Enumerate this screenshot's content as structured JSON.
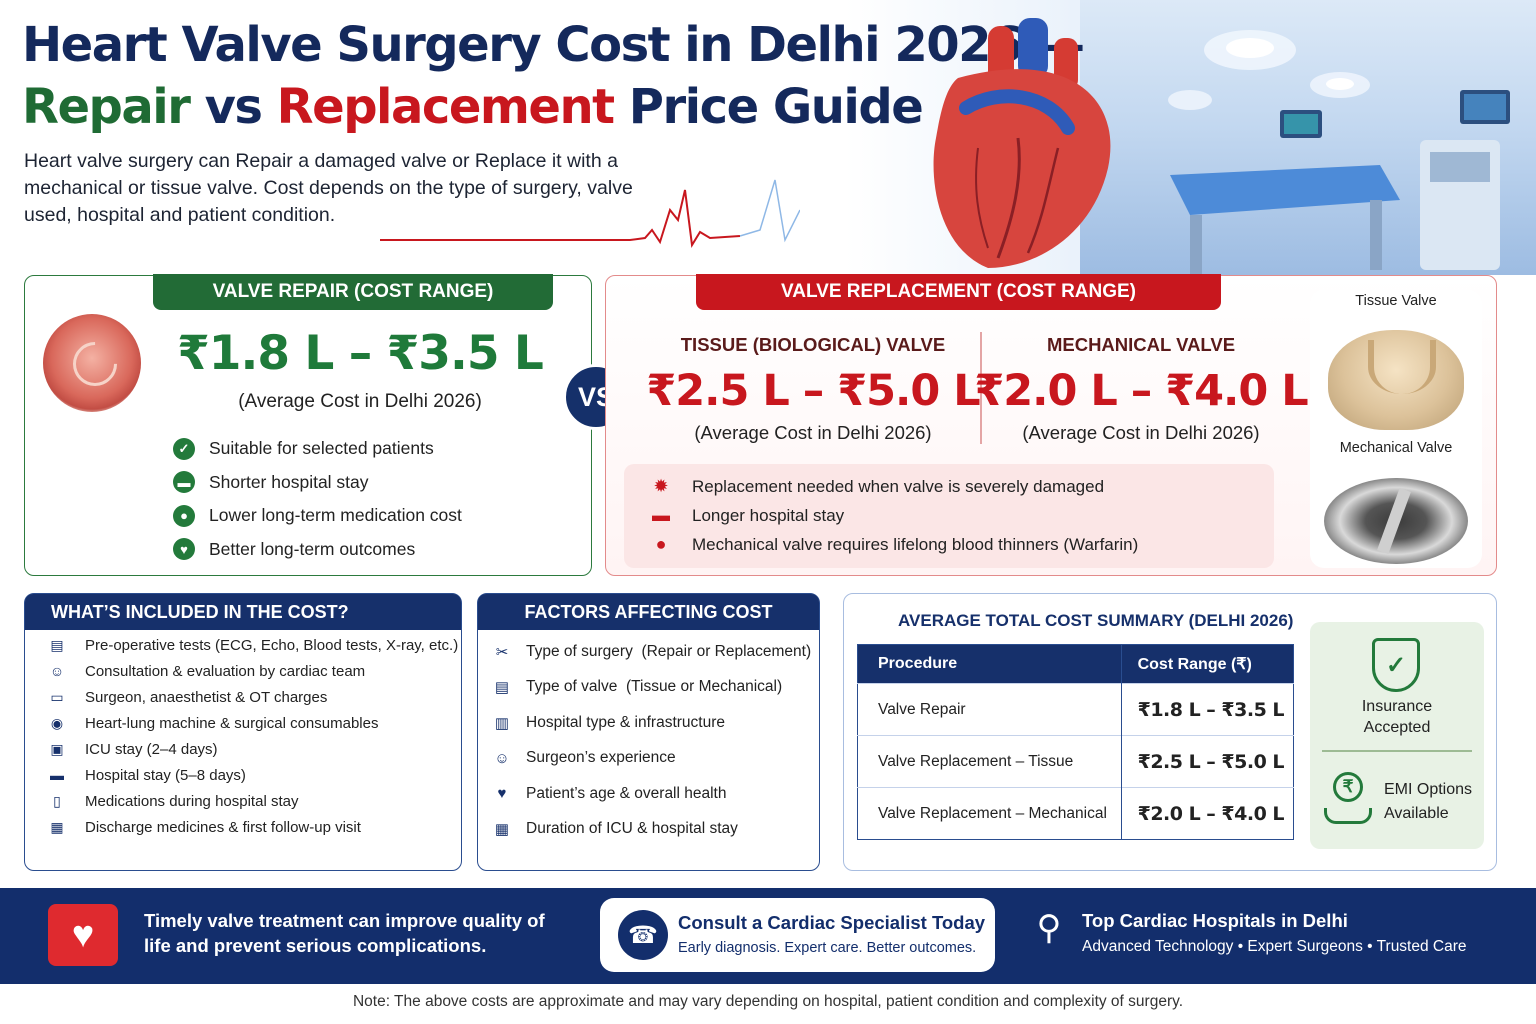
{
  "hero": {
    "title_line1": "Heart Valve Surgery Cost in Delhi 2026 —",
    "title_repair": "Repair",
    "title_vs": " vs ",
    "title_replacement": "Replacement",
    "title_tail": " Price Guide",
    "intro": "Heart valve surgery can Repair a damaged valve or Replace it with a mechanical or tissue valve. Cost depends on the type of surgery, valve used, hospital and patient condition."
  },
  "repair": {
    "tab": "VALVE REPAIR (COST RANGE)",
    "price": "₹1.8 L – ₹3.5 L",
    "avg": "(Average Cost in Delhi 2026)",
    "points": [
      {
        "icon": "check-icon",
        "text": "Suitable for selected patients"
      },
      {
        "icon": "bed-icon",
        "text": "Shorter hospital stay"
      },
      {
        "icon": "medicine-icon",
        "text": "Lower long-term medication cost"
      },
      {
        "icon": "heart-icon",
        "text": "Better long-term outcomes"
      }
    ]
  },
  "vs": "VS",
  "replacement": {
    "tab": "VALVE REPLACEMENT (COST RANGE)",
    "tissue": {
      "title": "TISSUE (BIOLOGICAL) VALVE",
      "price": "₹2.5 L – ₹5.0 L",
      "avg": "(Average Cost in Delhi 2026)"
    },
    "mechanical": {
      "title": "MECHANICAL VALVE",
      "price": "₹2.0 L – ₹4.0 L",
      "avg": "(Average Cost in Delhi 2026)"
    },
    "notes": [
      {
        "icon": "gear-icon",
        "text": "Replacement needed when valve is severely damaged"
      },
      {
        "icon": "bed-icon",
        "text": "Longer hospital stay"
      },
      {
        "icon": "blood-drop-icon",
        "text": "Mechanical valve requires lifelong blood thinners (Warfarin)"
      }
    ],
    "tissue_label": "Tissue Valve",
    "mechanical_label": "Mechanical Valve"
  },
  "included": {
    "title": "WHAT’S INCLUDED IN THE COST?",
    "items": [
      "Pre-operative tests (ECG, Echo, Blood tests, X-ray, etc.)",
      "Consultation & evaluation by cardiac team",
      "Surgeon, anaesthetist & OT charges",
      "Heart-lung machine & surgical consumables",
      "ICU stay (2–4 days)",
      "Hospital stay (5–8 days)",
      "Medications during hospital stay",
      "Discharge medicines & first follow-up visit"
    ]
  },
  "factors": {
    "title": "FACTORS AFFECTING COST",
    "items": [
      "Type of surgery  (Repair or Replacement)",
      "Type of valve  (Tissue or Mechanical)",
      "Hospital type & infrastructure",
      "Surgeon’s experience",
      "Patient’s age & overall health",
      "Duration of ICU & hospital stay"
    ]
  },
  "summary": {
    "title": "AVERAGE TOTAL COST SUMMARY (DELHI 2026)",
    "headers": [
      "Procedure",
      "Cost Range (₹)"
    ],
    "rows": [
      {
        "procedure": "Valve Repair",
        "cost": "₹1.8 L – ₹3.5 L"
      },
      {
        "procedure": "Valve Replacement – Tissue",
        "cost": "₹2.5 L – ₹5.0 L"
      },
      {
        "procedure": "Valve Replacement – Mechanical",
        "cost": "₹2.0 L – ₹4.0 L"
      }
    ],
    "insurance_line1": "Insurance",
    "insurance_line2": "Accepted",
    "emi_line1": "EMI Options",
    "emi_line2": "Available"
  },
  "footer": {
    "message": "Timely valve treatment can improve quality of life and prevent serious complications.",
    "consult_title": "Consult a Cardiac Specialist Today",
    "consult_sub": "Early diagnosis. Expert care. Better outcomes.",
    "top_title": "Top Cardiac Hospitals in Delhi",
    "top_sub": "Advanced Technology • Expert Surgeons • Trusted Care"
  },
  "note": "Note: The above costs are approximate and may vary depending on hospital, patient condition and complexity of surgery.",
  "colors": {
    "navy": "#16306b",
    "green": "#1f7a3a",
    "red": "#c8171e"
  }
}
